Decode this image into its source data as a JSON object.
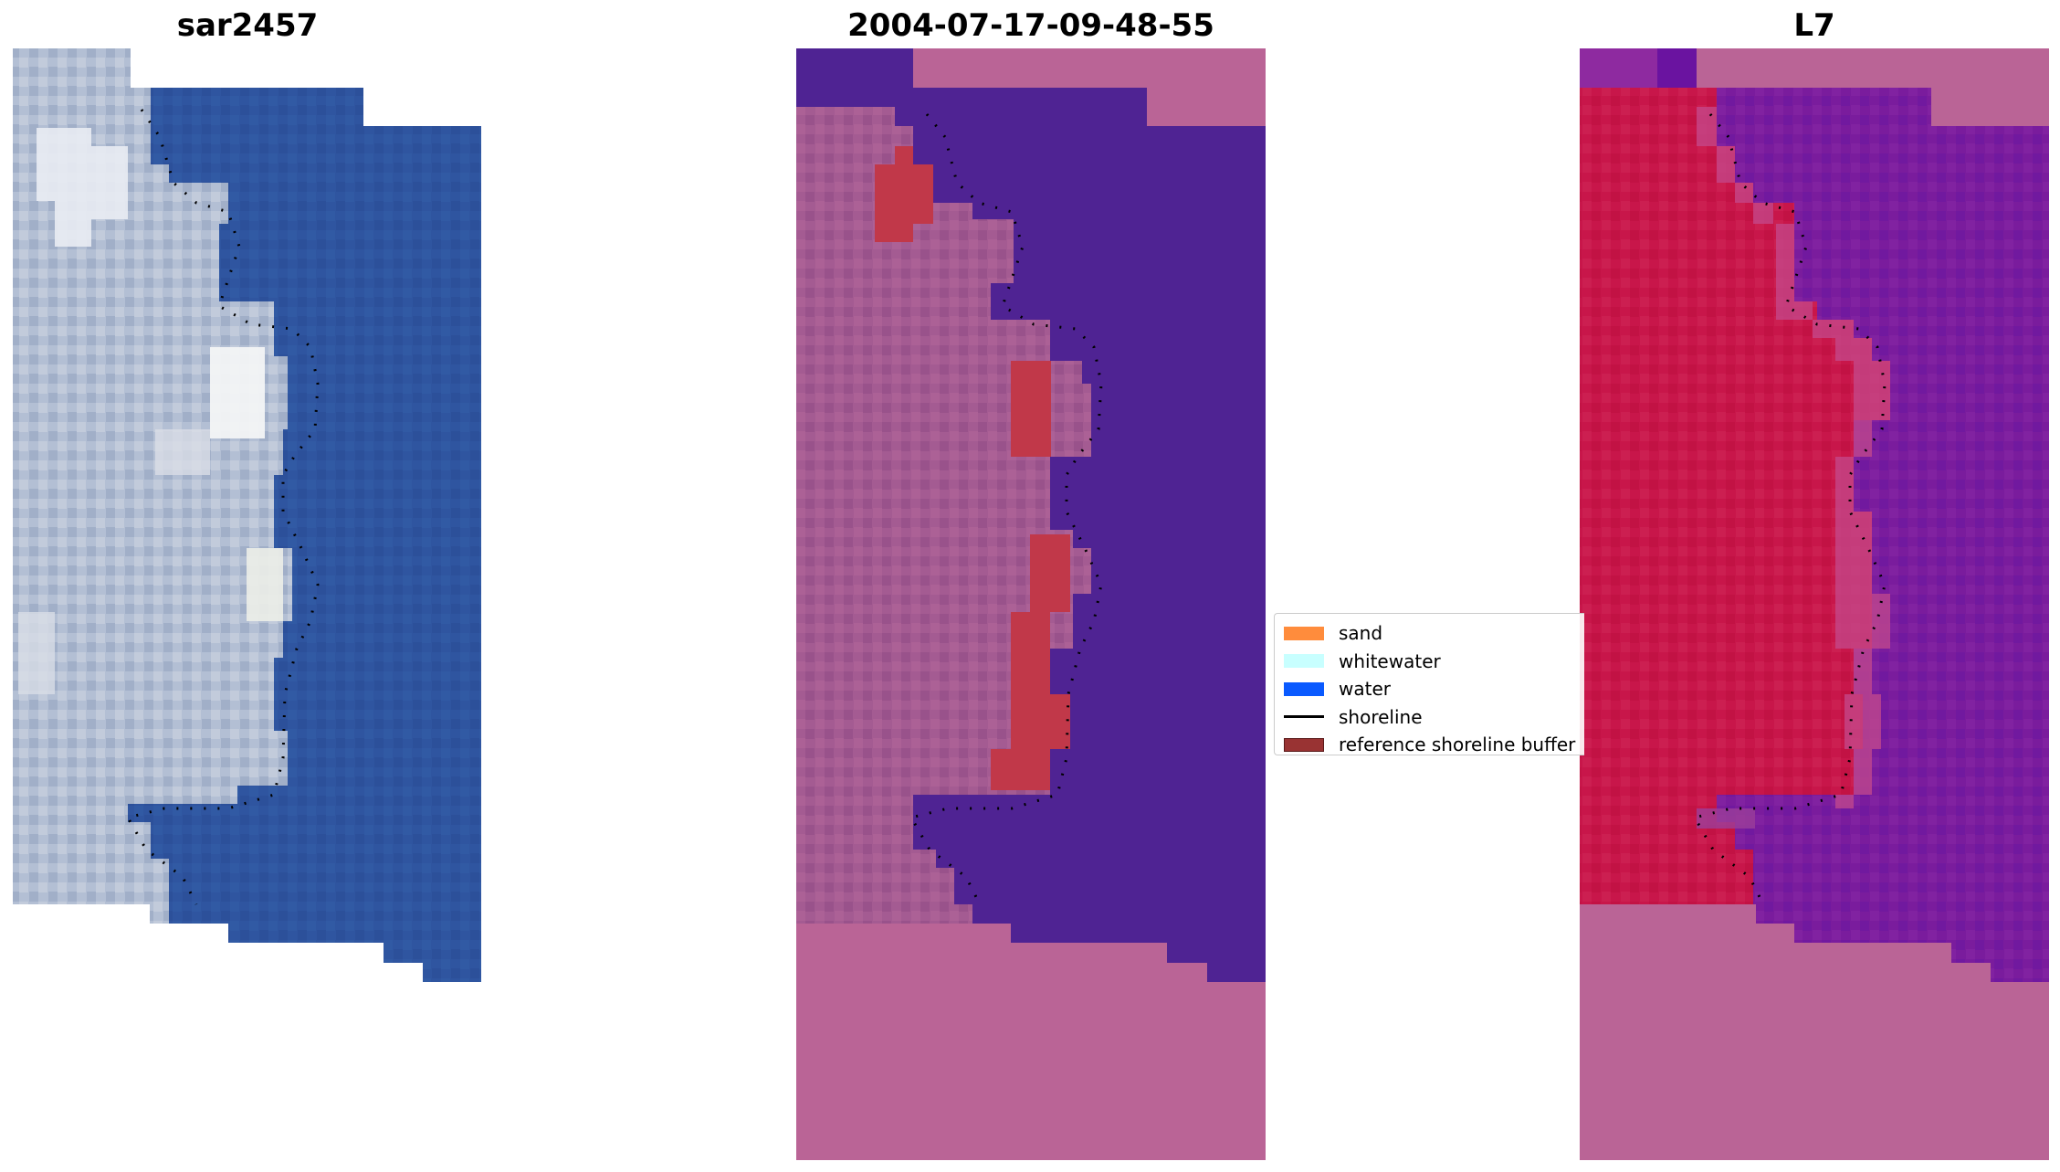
{
  "panels": [
    {
      "title": "sar2457"
    },
    {
      "title": "2004-07-17-09-48-55"
    },
    {
      "title": "L7"
    }
  ],
  "legend": {
    "items": [
      {
        "label": "sand",
        "color": "#ff8c3c",
        "kind": "patch"
      },
      {
        "label": "whitewater",
        "color": "#c8ffff",
        "kind": "patch"
      },
      {
        "label": "water",
        "color": "#0a5aff",
        "kind": "patch"
      },
      {
        "label": "shoreline",
        "color": "#000000",
        "kind": "line"
      },
      {
        "label": "reference shoreline buffer",
        "color": "#993333",
        "kind": "patch"
      }
    ]
  },
  "colors": {
    "rgb_water": "#2f55a0",
    "rgb_land": "#b8c4d8",
    "rgb_bright": "#eef0f4",
    "classified_nodata": "#ba6496",
    "classified_water": "#4f2393",
    "classified_land": "#a45b92",
    "classified_buffer": "#c13849",
    "index_land": "#c8164a",
    "index_water": "#7a1c9d",
    "shoreline": "#000000"
  }
}
